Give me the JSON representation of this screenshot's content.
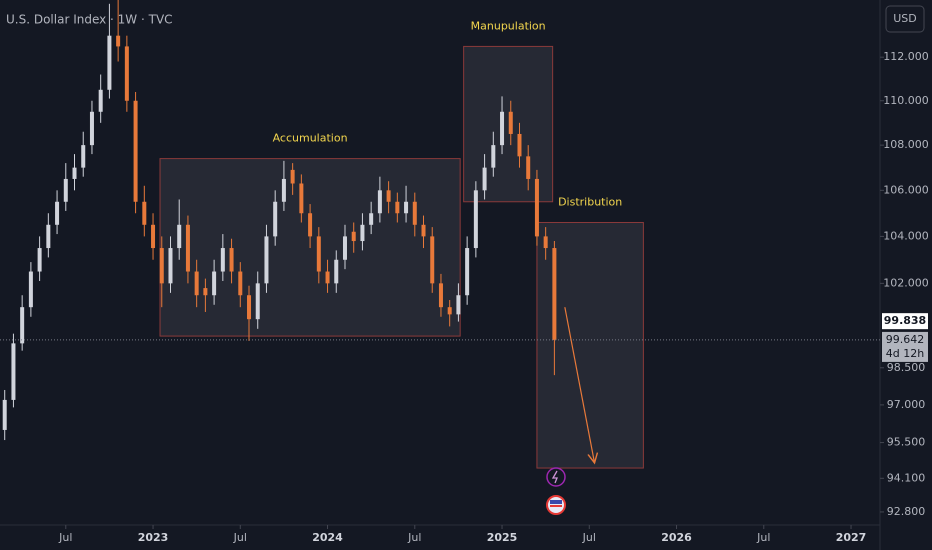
{
  "chart_data": {
    "type": "candlestick",
    "title": "U.S. Dollar Index · 1W · TVC",
    "currency": "USD",
    "log_scale": true,
    "up_color": "#d1d4dc",
    "down_color": "#e8793a",
    "xlim": [
      2022.123,
      2027.166
    ],
    "ylim": [
      92.3,
      114.68
    ],
    "xticks": [
      {
        "value": 2022.5,
        "label": "Jul"
      },
      2023,
      {
        "value": 2023.5,
        "label": "Jul"
      },
      2024,
      {
        "value": 2024.5,
        "label": "Jul"
      },
      2025,
      {
        "value": 2025.5,
        "label": "Jul"
      },
      2026,
      {
        "value": 2026.5,
        "label": "Jul"
      },
      2027
    ],
    "yticks": [
      {
        "value": 112,
        "label": "112.000"
      },
      {
        "value": 110,
        "label": "110.000"
      },
      {
        "value": 108,
        "label": "108.000"
      },
      {
        "value": 106,
        "label": "106.000"
      },
      {
        "value": 104,
        "label": "104.000"
      },
      {
        "value": 102,
        "label": "102.000"
      },
      {
        "value": 98.5,
        "label": "98.500"
      },
      {
        "value": 97,
        "label": "97.000"
      },
      {
        "value": 95.5,
        "label": "95.500"
      },
      {
        "value": 94.1,
        "label": "94.100"
      },
      {
        "value": 92.8,
        "label": "92.800"
      }
    ],
    "x": [
      2022.15,
      2022.2,
      2022.25,
      2022.3,
      2022.35,
      2022.4,
      2022.45,
      2022.5,
      2022.55,
      2022.6,
      2022.65,
      2022.7,
      2022.75,
      2022.8,
      2022.85,
      2022.9,
      2022.95,
      2023.0,
      2023.05,
      2023.1,
      2023.15,
      2023.2,
      2023.25,
      2023.3,
      2023.35,
      2023.4,
      2023.45,
      2023.5,
      2023.55,
      2023.6,
      2023.65,
      2023.7,
      2023.75,
      2023.8,
      2023.85,
      2023.9,
      2023.95,
      2024.0,
      2024.05,
      2024.1,
      2024.15,
      2024.2,
      2024.25,
      2024.3,
      2024.35,
      2024.4,
      2024.45,
      2024.5,
      2024.55,
      2024.6,
      2024.65,
      2024.7,
      2024.75,
      2024.8,
      2024.85,
      2024.9,
      2024.95,
      2025.0,
      2025.05,
      2025.1,
      2025.15,
      2025.2,
      2025.25,
      2025.3
    ],
    "open": [
      96.0,
      97.2,
      99.5,
      101,
      102.5,
      103.5,
      104.5,
      105.5,
      106.5,
      107,
      108,
      109.5,
      110.5,
      113,
      112.5,
      110,
      105.5,
      104.5,
      103.5,
      102,
      103.5,
      104.5,
      102.5,
      101.8,
      101.5,
      102.5,
      103.5,
      102.5,
      101.5,
      100.5,
      102,
      104,
      105.5,
      106.9,
      106.3,
      105,
      104,
      102.5,
      102,
      103,
      104.2,
      103.8,
      104.5,
      105,
      106,
      105.5,
      105,
      105.5,
      104.5,
      104,
      102,
      101,
      100.7,
      101.5,
      103.5,
      106,
      107,
      108,
      109.5,
      108.5,
      107.5,
      106.5,
      104,
      103.5
    ],
    "high": [
      97.6,
      99.9,
      101.5,
      102.9,
      104,
      105,
      106,
      107.2,
      107.6,
      108.6,
      110,
      111.2,
      114.5,
      114.7,
      113,
      110.4,
      106.2,
      105,
      104,
      104,
      105.6,
      104.9,
      103,
      102.2,
      103,
      104.1,
      103.9,
      102.9,
      101.9,
      102.5,
      104.5,
      106,
      107.3,
      107.2,
      106.7,
      105.4,
      104.4,
      103,
      103.4,
      104.5,
      104.6,
      105,
      105.5,
      106.6,
      106.4,
      105.9,
      106.2,
      105.9,
      104.9,
      104.4,
      102.4,
      101.3,
      102,
      104,
      106.4,
      107.6,
      108.6,
      110.2,
      110,
      109,
      108,
      106.9,
      104.4,
      103.8
    ],
    "low": [
      95.6,
      96.9,
      99.2,
      100.6,
      102.1,
      103.1,
      104.1,
      105.1,
      106,
      106.6,
      107.6,
      109,
      110.1,
      111.8,
      109.5,
      105,
      104,
      103,
      101,
      101.6,
      103,
      102,
      101,
      100.8,
      101.1,
      102.1,
      102,
      101,
      99.6,
      100.1,
      101.6,
      103.6,
      105.1,
      105.8,
      104.6,
      103.5,
      102,
      101.6,
      101.6,
      102.6,
      103.3,
      103.4,
      104.1,
      104.6,
      105,
      104.6,
      104.6,
      104,
      103.5,
      101.6,
      100.6,
      100.2,
      100.4,
      101.1,
      103.1,
      105.6,
      106.6,
      107.6,
      108,
      107,
      106,
      103.6,
      103,
      98.2
    ],
    "close": [
      97.2,
      99.5,
      101,
      102.5,
      103.5,
      104.5,
      105.5,
      106.5,
      107,
      108,
      109.5,
      110.5,
      113,
      112.5,
      110,
      105.5,
      104.5,
      103.5,
      102,
      103.5,
      104.5,
      102.5,
      101.5,
      101.5,
      102.5,
      103.5,
      102.5,
      101.5,
      100.5,
      102,
      104,
      105.5,
      106.5,
      106.3,
      105,
      104,
      102.5,
      102,
      103,
      104,
      103.8,
      104.5,
      105,
      106,
      105.5,
      105,
      105.5,
      104.5,
      104,
      102,
      101,
      100.7,
      101.5,
      103.5,
      106,
      107,
      108,
      109.5,
      108.5,
      107.5,
      106.5,
      104,
      103.5,
      99.642
    ],
    "marker_price": 99.838,
    "current_price": 99.642,
    "countdown": "4d 12h",
    "annotations": [
      {
        "label": "Accumulation",
        "x": [
          2023.04,
          2024.76
        ],
        "y": [
          99.8,
          107.4
        ]
      },
      {
        "label": "Manupulation",
        "x": [
          2024.78,
          2025.29
        ],
        "y": [
          105.5,
          112.5
        ]
      },
      {
        "label": "Distribution",
        "x": [
          2025.2,
          2025.81
        ],
        "y": [
          94.5,
          104.6
        ]
      }
    ],
    "arrow": {
      "x": [
        2025.36,
        2025.53
      ],
      "y": [
        101,
        94.7
      ]
    }
  }
}
